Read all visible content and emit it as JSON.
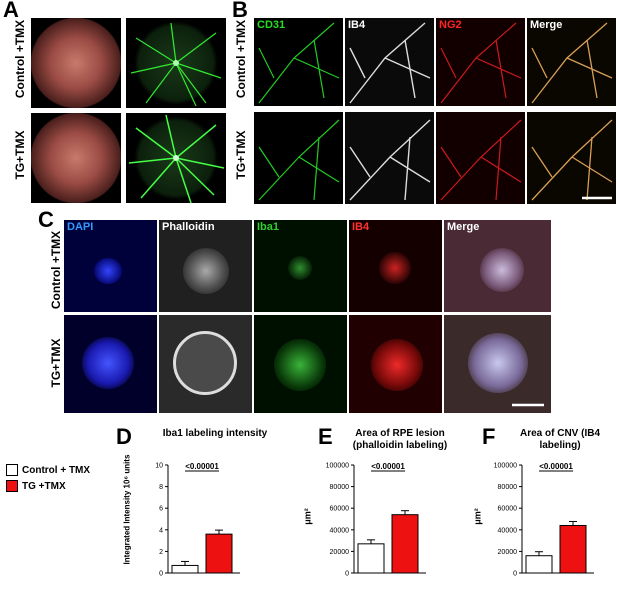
{
  "panels": {
    "A": {
      "letter": "A",
      "rows": [
        "Control +TMX",
        "TG+TMX"
      ]
    },
    "B": {
      "letter": "B",
      "channels": [
        "CD31",
        "IB4",
        "NG2",
        "Merge"
      ],
      "channel_colors": [
        "#22dd22",
        "#ffffff",
        "#ff2222",
        "#ffffff"
      ],
      "rows": [
        "Control +TMX",
        "TG+TMX"
      ]
    },
    "C": {
      "letter": "C",
      "channels": [
        "DAPI",
        "Phalloidin",
        "Iba1",
        "IB4",
        "Merge"
      ],
      "channel_colors": [
        "#3399ff",
        "#ffffff",
        "#33cc33",
        "#ff3333",
        "#ffffff"
      ],
      "rows": [
        "Control +TMX",
        "TG+TMX"
      ]
    },
    "D": {
      "letter": "D"
    },
    "E": {
      "letter": "E"
    },
    "F": {
      "letter": "F"
    }
  },
  "legend": {
    "items": [
      {
        "label": "Control + TMX",
        "color": "#ffffff"
      },
      {
        "label": "TG +TMX",
        "color": "#ee1111"
      }
    ]
  },
  "chart_data": [
    {
      "type": "bar",
      "title": "Iba1 labeling intensity",
      "ylabel": "Integrated Intensity 10⁶ units",
      "categories": [
        "Control + TMX",
        "TG +TMX"
      ],
      "values": [
        0.7,
        3.6
      ],
      "ylim": [
        0,
        10
      ],
      "yticks": [
        0,
        2,
        4,
        6,
        8,
        10
      ],
      "pvalue": "<0.00001"
    },
    {
      "type": "bar",
      "title": "Area of RPE lesion (phalloidin labeling)",
      "ylabel": "μm²",
      "categories": [
        "Control + TMX",
        "TG +TMX"
      ],
      "values": [
        27000,
        54000
      ],
      "ylim": [
        0,
        100000
      ],
      "yticks": [
        0,
        20000,
        40000,
        60000,
        80000,
        100000
      ],
      "pvalue": "<0.00001"
    },
    {
      "type": "bar",
      "title": "Area of CNV (IB4 labeling)",
      "ylabel": "μm²",
      "categories": [
        "Control + TMX",
        "TG +TMX"
      ],
      "values": [
        16000,
        44000
      ],
      "ylim": [
        0,
        100000
      ],
      "yticks": [
        0,
        20000,
        40000,
        60000,
        80000,
        100000
      ],
      "pvalue": "<0.00001"
    }
  ]
}
